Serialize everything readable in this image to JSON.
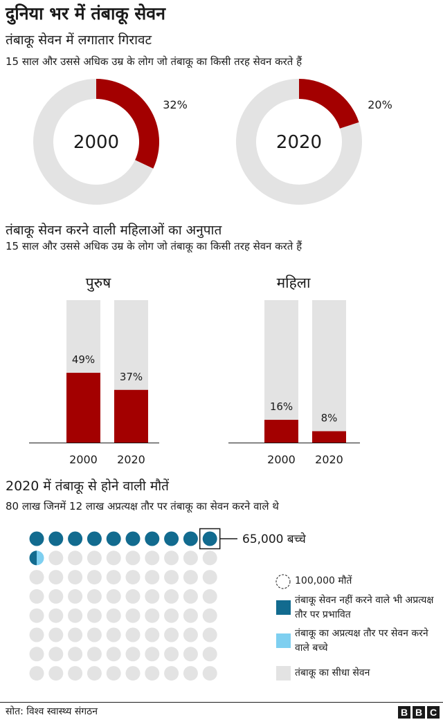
{
  "title": "दुनिया भर में तंबाकू सेवन",
  "colors": {
    "accent": "#a30000",
    "grey": "#e3e3e3",
    "dark_teal": "#126b8f",
    "light_blue": "#7ecff0"
  },
  "section1": {
    "title": "तंबाकू सेवन में लगातार गिरावट",
    "subtitle": "15 साल और उससे अधिक उम्र के लोग जो तंबाकू का किसी तरह सेवन करते हैं"
  },
  "section2": {
    "title": "तंबाकू सेवन करने वाली महिलाओं का अनुपात",
    "subtitle": "15 साल और उससे अधिक उम्र के लोग जो तंबाकू का किसी तरह सेवन करते हैं"
  },
  "section3": {
    "title": "2020 में तंबाकू से होने वाली मौतें",
    "subtitle": "80 लाख जिनमें 12 लाख अप्रत्यक्ष तौर पर तंबाकू का सेवन करने वाले थे",
    "callout": "65,000 बच्चे",
    "legend": [
      {
        "key": "unit",
        "label": "100,000 मौतें"
      },
      {
        "key": "indirect",
        "label": "तंबाकू सेवन नहीं करने वाले भी अप्रत्यक्ष तौर पर प्रभावित"
      },
      {
        "key": "children",
        "label": "तंबाकू का अप्रत्यक्ष तौर पर सेवन करने वाले बच्चे"
      },
      {
        "key": "direct",
        "label": "तंबाकू का सीधा सेवन"
      }
    ]
  },
  "source": "सोत: विश्व स्वास्थ्य संगठन",
  "bbc": [
    "B",
    "B",
    "C"
  ],
  "chart_data": [
    {
      "type": "pie",
      "center_label": "2000",
      "slices": [
        {
          "name": "",
          "value": 32,
          "label": "32%",
          "color": "#a30000"
        },
        {
          "name": "",
          "value": 68,
          "color": "#e3e3e3"
        }
      ]
    },
    {
      "type": "pie",
      "center_label": "2020",
      "slices": [
        {
          "name": "",
          "value": 20,
          "label": "20%",
          "color": "#a30000"
        },
        {
          "name": "",
          "value": 80,
          "color": "#e3e3e3"
        }
      ]
    },
    {
      "type": "bar",
      "title": "पुरुष",
      "categories": [
        "2000",
        "2020"
      ],
      "values": [
        49,
        37
      ],
      "labels": [
        "49%",
        "37%"
      ],
      "ylim": [
        0,
        100
      ]
    },
    {
      "type": "bar",
      "title": "महिला",
      "categories": [
        "2000",
        "2020"
      ],
      "values": [
        16,
        8
      ],
      "labels": [
        "16%",
        "8%"
      ],
      "ylim": [
        0,
        100
      ]
    },
    {
      "type": "waffle",
      "unit_value": 100000,
      "total": 80,
      "counts": {
        "indirect": 11,
        "children": 0.65,
        "direct": 68
      }
    }
  ]
}
